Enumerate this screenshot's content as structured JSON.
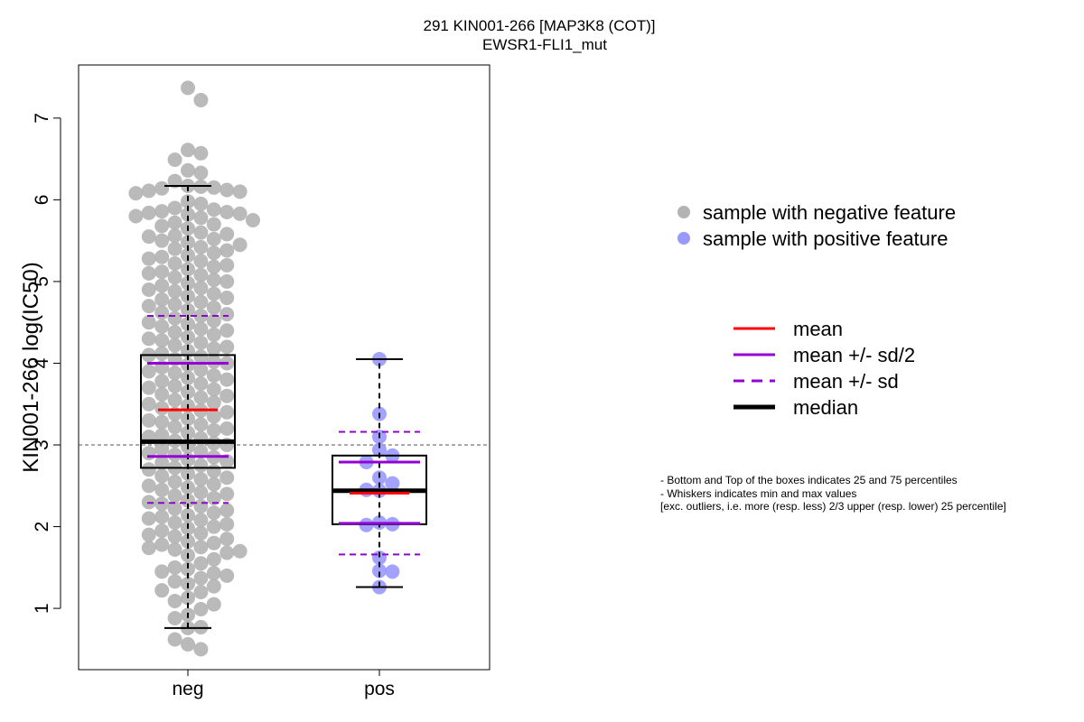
{
  "chart_data": {
    "type": "boxplot",
    "title": "291 KIN001-266 [MAP3K8 (COT)]",
    "subtitle": "EWSR1-FLI1_mut",
    "ylabel": "KIN001-266 log(IC50)",
    "xlabel": "",
    "ylim": [
      0.25,
      7.65
    ],
    "yticks": [
      1,
      2,
      3,
      4,
      5,
      6,
      7
    ],
    "reference_line": 3.0,
    "categories": [
      "neg",
      "pos"
    ],
    "groups": [
      {
        "name": "neg",
        "color": "#b3b3b3",
        "stats": {
          "whisker_low": 0.76,
          "q1": 2.72,
          "median": 3.04,
          "q3": 4.1,
          "whisker_high": 6.17,
          "mean": 3.43,
          "mean_minus_half_sd": 2.86,
          "mean_plus_half_sd": 4.0,
          "mean_minus_sd": 2.29,
          "mean_plus_sd": 4.58
        },
        "points": [
          7.37,
          7.22,
          6.61,
          6.57,
          6.49,
          6.36,
          6.33,
          6.23,
          6.17,
          6.16,
          6.15,
          6.14,
          6.12,
          6.11,
          6.1,
          6.08,
          5.98,
          5.95,
          5.9,
          5.88,
          5.86,
          5.85,
          5.84,
          5.83,
          5.82,
          5.8,
          5.78,
          5.75,
          5.72,
          5.7,
          5.68,
          5.65,
          5.6,
          5.58,
          5.56,
          5.55,
          5.52,
          5.5,
          5.48,
          5.45,
          5.42,
          5.4,
          5.38,
          5.35,
          5.32,
          5.3,
          5.28,
          5.25,
          5.22,
          5.2,
          5.18,
          5.15,
          5.12,
          5.1,
          5.08,
          5.05,
          5.02,
          5.0,
          4.98,
          4.95,
          4.92,
          4.9,
          4.88,
          4.85,
          4.82,
          4.8,
          4.78,
          4.75,
          4.72,
          4.7,
          4.68,
          4.65,
          4.62,
          4.6,
          4.58,
          4.55,
          4.52,
          4.5,
          4.48,
          4.45,
          4.42,
          4.4,
          4.38,
          4.35,
          4.32,
          4.3,
          4.28,
          4.25,
          4.22,
          4.2,
          4.18,
          4.15,
          4.12,
          4.1,
          4.08,
          4.05,
          4.02,
          4.0,
          3.98,
          3.95,
          3.92,
          3.9,
          3.88,
          3.85,
          3.82,
          3.8,
          3.78,
          3.75,
          3.72,
          3.7,
          3.68,
          3.65,
          3.62,
          3.6,
          3.58,
          3.55,
          3.52,
          3.5,
          3.48,
          3.45,
          3.42,
          3.4,
          3.38,
          3.35,
          3.32,
          3.3,
          3.28,
          3.25,
          3.22,
          3.2,
          3.18,
          3.15,
          3.12,
          3.1,
          3.08,
          3.05,
          3.02,
          3.0,
          2.98,
          2.95,
          2.92,
          2.9,
          2.88,
          2.85,
          2.82,
          2.8,
          2.78,
          2.75,
          2.72,
          2.7,
          2.68,
          2.65,
          2.62,
          2.6,
          2.58,
          2.55,
          2.52,
          2.5,
          2.48,
          2.45,
          2.42,
          2.4,
          2.38,
          2.35,
          2.32,
          2.3,
          2.28,
          2.25,
          2.22,
          2.2,
          2.17,
          2.14,
          2.12,
          2.1,
          2.08,
          2.05,
          2.03,
          2.0,
          1.98,
          1.95,
          1.92,
          1.9,
          1.88,
          1.85,
          1.82,
          1.8,
          1.78,
          1.75,
          1.74,
          1.72,
          1.7,
          1.68,
          1.65,
          1.6,
          1.55,
          1.5,
          1.48,
          1.45,
          1.43,
          1.4,
          1.37,
          1.33,
          1.3,
          1.27,
          1.22,
          1.2,
          1.13,
          1.09,
          1.05,
          0.99,
          0.92,
          0.88,
          0.77,
          0.76,
          0.62,
          0.56,
          0.5
        ]
      },
      {
        "name": "pos",
        "color": "#9999ff",
        "stats": {
          "whisker_low": 1.26,
          "q1": 2.03,
          "median": 2.44,
          "q3": 2.87,
          "whisker_high": 4.05,
          "mean": 2.41,
          "mean_minus_half_sd": 2.04,
          "mean_plus_half_sd": 2.79,
          "mean_minus_sd": 1.66,
          "mean_plus_sd": 3.16
        },
        "points": [
          4.05,
          3.38,
          3.1,
          2.94,
          2.87,
          2.79,
          2.6,
          2.53,
          2.45,
          2.44,
          2.05,
          2.03,
          2.02,
          1.62,
          1.46,
          1.45,
          1.26
        ]
      }
    ],
    "legend": {
      "points": [
        {
          "label": "sample with negative feature",
          "color": "#b3b3b3"
        },
        {
          "label": "sample with positive feature",
          "color": "#9999ff"
        }
      ],
      "lines": [
        {
          "label": "mean",
          "color": "#ff0000",
          "style": "solid",
          "weight": "normal"
        },
        {
          "label": "mean +/- sd/2",
          "color": "#9400d3",
          "style": "solid",
          "weight": "normal"
        },
        {
          "label": "mean +/- sd",
          "color": "#9400d3",
          "style": "dashed",
          "weight": "normal"
        },
        {
          "label": "median",
          "color": "#000000",
          "style": "solid",
          "weight": "bold"
        }
      ]
    },
    "notes": [
      "- Bottom and Top of the boxes indicates 25 and 75 percentiles",
      "- Whiskers indicates min and max values",
      "[exc. outliers, i.e. more (resp. less) 2/3 upper (resp. lower) 25 percentile]"
    ]
  }
}
